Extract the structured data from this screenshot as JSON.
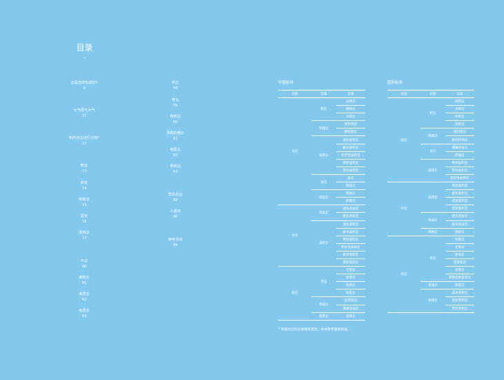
{
  "toc": {
    "title": "目录",
    "mark": "-",
    "left": [
      {
        "label": "云是怎样形成的?",
        "page": "9"
      },
      {
        "label": "大气层与大气",
        "page": "11"
      },
      {
        "label": "如何对云进行分类?",
        "page": "12"
      },
      {
        "label": "积云",
        "page": "13"
      },
      {
        "label": "积云",
        "page": "14"
      },
      {
        "label": "积雨云",
        "page": "15"
      },
      {
        "label": "层云",
        "page": "16"
      },
      {
        "label": "层积云",
        "page": "17"
      },
      {
        "label": "中云",
        "page": "40"
      },
      {
        "label": "高积云",
        "page": "41"
      },
      {
        "label": "高层云",
        "page": "42"
      },
      {
        "label": "雨层云",
        "page": "43"
      }
    ],
    "right": [
      {
        "label": "高云",
        "page": "58"
      },
      {
        "label": "卷云",
        "page": "59"
      },
      {
        "label": "卷积云",
        "page": "60"
      },
      {
        "label": "漂亮的卷云",
        "page": "61"
      },
      {
        "label": "卷层云",
        "page": "62"
      },
      {
        "label": "卷积云",
        "page": "63"
      },
      {
        "label": "罕见的云",
        "page": "69"
      },
      {
        "label": "人造云",
        "page": "90"
      },
      {
        "label": "参考书目",
        "page": "94"
      }
    ]
  },
  "cn_table": {
    "title": "中国标准",
    "headers": [
      "云族",
      "云属",
      "云类"
    ],
    "groups": [
      {
        "family": "低云",
        "genera": [
          {
            "name": "积云",
            "types": [
              "淡积云",
              "碎积云",
              "浓积云"
            ]
          },
          {
            "name": "积雨云",
            "types": [
              "秃积雨云",
              "鬃积雨云"
            ]
          },
          {
            "name": "层积云",
            "types": [
              "透光层积云",
              "蔽光层积云",
              "积云性层积云",
              "堡状层积云",
              "荚状层积云"
            ]
          },
          {
            "name": "层云",
            "types": [
              "层云",
              "碎层云"
            ]
          },
          {
            "name": "雨层云",
            "types": [
              "雨层云",
              "碎雨云"
            ]
          }
        ]
      },
      {
        "family": "中云",
        "genera": [
          {
            "name": "高层云",
            "types": [
              "透光高层云",
              "蔽光高层云"
            ]
          },
          {
            "name": "高积云",
            "types": [
              "透光高积云",
              "蔽光高积云",
              "荚状高积云",
              "积云性高积云",
              "絮状高积云",
              "堡状高积云"
            ]
          }
        ]
      },
      {
        "family": "高云",
        "genera": [
          {
            "name": "卷云",
            "types": [
              "毛卷云",
              "密卷云",
              "伪卷云",
              "钩卷云"
            ]
          },
          {
            "name": "卷层云",
            "types": [
              "毛卷层云",
              "薄幕卷层云"
            ]
          },
          {
            "name": "卷积云",
            "types": [
              "卷积云"
            ]
          }
        ]
      }
    ]
  },
  "intl_table": {
    "title": "国际标准",
    "headers": [
      "云族",
      "云属",
      "云类"
    ],
    "groups": [
      {
        "family": "低云",
        "genera": [
          {
            "name": "积云",
            "types": [
              "碎积云",
              "淡积云",
              "中积云",
              "浓积云"
            ]
          },
          {
            "name": "积雨云",
            "types": [
              "秃积雨云",
              "鬃状积雨云"
            ]
          },
          {
            "name": "层云",
            "types": [
              "薄幕状层云",
              "碎层云"
            ]
          },
          {
            "name": "层积云",
            "types": [
              "荚状层积云",
              "堡状层积云",
              "积云性层积云"
            ]
          }
        ]
      },
      {
        "family": "中云",
        "genera": [
          {
            "name": "高积云",
            "types": [
              "荚状高积云",
              "絮状高积云",
              "成层高积云",
              "堡状高积云"
            ]
          },
          {
            "name": "高层云",
            "types": [
              "透光高层云",
              "蔽光高层云"
            ]
          },
          {
            "name": "雨层云",
            "types": [
              "雨层云"
            ]
          }
        ]
      },
      {
        "family": "高云",
        "genera": [
          {
            "name": "卷云",
            "types": [
              "钩卷云",
              "毛卷云",
              "密卷云",
              "堡状卷云",
              "絮卷云",
              "积雨云性密卷云"
            ]
          },
          {
            "name": "卷层云",
            "types": [
              "絮卷云"
            ]
          },
          {
            "name": "卷积云",
            "types": [
              "成层卷积云",
              "絮状卷积云",
              "荚状卷积云"
            ]
          }
        ]
      }
    ]
  },
  "footnote": "* 我国对云的分类略有差异，本书参考国际标准。"
}
